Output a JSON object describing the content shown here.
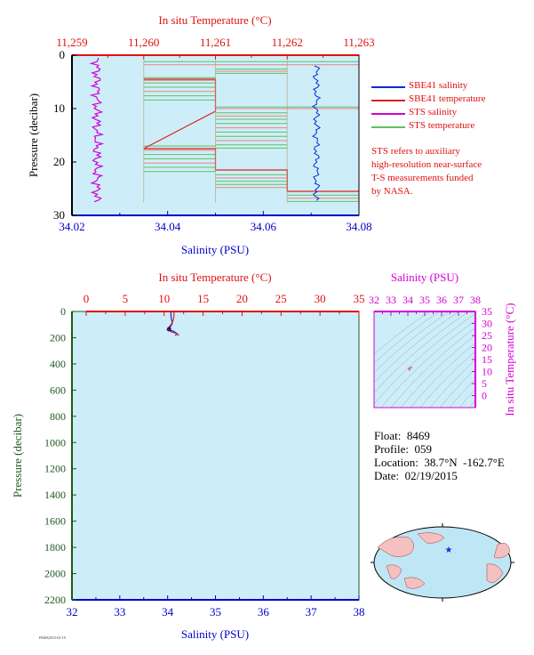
{
  "colors": {
    "plot_bg": "#cdeef8",
    "salinity_axis": "#0000c8",
    "temperature_axis": "#e01010",
    "pressure_axis": "#1c5a1c",
    "sbe_salinity": "#0a2ad8",
    "sbe_temperature": "#e02020",
    "sts_salinity": "#d400d4",
    "sts_temperature": "#60c060",
    "map_land": "#f4c0c0",
    "map_ocean": "#bfe6f4"
  },
  "legend": [
    {
      "label": "SBE41 salinity",
      "color": "#0a2ad8"
    },
    {
      "label": "SBE41 temperature",
      "color": "#e02020"
    },
    {
      "label": "STS salinity",
      "color": "#d400d4"
    },
    {
      "label": "STS temperature",
      "color": "#60c060"
    }
  ],
  "note_lines": [
    "STS refers to auxiliary",
    "high-resolution near-surface",
    "T-S measurements funded",
    "by NASA."
  ],
  "float_info": {
    "float": "Float:  8469",
    "profile": "Profile:  059",
    "location": "Location:  38.7°N  -162.7°E",
    "date": "Date:  02/19/2015"
  },
  "footer_code": "F8469|2015-02-19",
  "chart_data": [
    {
      "type": "line",
      "panel": "near-surface",
      "xlabel": "Salinity (PSU)",
      "x2label": "In situ Temperature (°C)",
      "ylabel": "Pressure (decibar)",
      "xlim": [
        34.02,
        34.08
      ],
      "x2lim": [
        11.259,
        11.263
      ],
      "ylim": [
        30,
        0
      ],
      "x_ticks": [
        "34.02",
        "34.04",
        "34.06",
        "34.08"
      ],
      "x2_ticks": [
        "11,259",
        "11,260",
        "11,261",
        "11,262",
        "11,263"
      ],
      "y_ticks": [
        "0",
        "10",
        "20",
        "30"
      ],
      "grid": false,
      "legend_position": "right",
      "series": [
        {
          "name": "SBE41 salinity",
          "axis": "salinity",
          "points": [
            [
              34.0712,
              3
            ],
            [
              34.0705,
              6
            ],
            [
              34.0715,
              9
            ],
            [
              34.0708,
              12
            ],
            [
              34.0712,
              15
            ],
            [
              34.0706,
              18
            ],
            [
              34.0714,
              21
            ],
            [
              34.0709,
              24
            ],
            [
              34.0711,
              27
            ]
          ]
        },
        {
          "name": "STS salinity",
          "axis": "salinity",
          "points": [
            [
              34.0255,
              0.5
            ],
            [
              34.0248,
              3
            ],
            [
              34.0258,
              6
            ],
            [
              34.025,
              9
            ],
            [
              34.0256,
              12
            ],
            [
              34.0247,
              15
            ],
            [
              34.0257,
              18
            ],
            [
              34.0251,
              21
            ],
            [
              34.0255,
              24
            ],
            [
              34.0249,
              27.5
            ]
          ]
        },
        {
          "name": "SBE41 temperature",
          "axis": "temperature",
          "points": [
            [
              11.26,
              4.5
            ],
            [
              11.261,
              4.5
            ],
            [
              11.261,
              10.5
            ],
            [
              11.26,
              17.5
            ],
            [
              11.261,
              17.5
            ],
            [
              11.261,
              21.5
            ],
            [
              11.262,
              21.5
            ],
            [
              11.262,
              25.5
            ],
            [
              11.263,
              25.5
            ]
          ]
        },
        {
          "name": "STS temperature",
          "axis": "temperature",
          "points": [
            [
              11.26,
              1.8
            ],
            [
              11.263,
              1.2
            ],
            [
              11.261,
              3
            ],
            [
              11.262,
              3.5
            ],
            [
              11.26,
              5
            ],
            [
              11.261,
              5
            ],
            [
              11.261,
              9.8
            ],
            [
              11.263,
              9.8
            ],
            [
              11.26,
              17
            ],
            [
              11.261,
              22
            ],
            [
              11.262,
              22
            ],
            [
              11.262,
              26.5
            ],
            [
              11.263,
              27.2
            ]
          ]
        }
      ]
    },
    {
      "type": "line",
      "panel": "full-profile",
      "xlabel": "Salinity (PSU)",
      "x2label": "In situ Temperature (°C)",
      "ylabel": "Pressure (decibar)",
      "xlim": [
        32,
        38
      ],
      "x2lim": [
        0,
        35
      ],
      "ylim": [
        2200,
        0
      ],
      "x_ticks": [
        "32",
        "33",
        "34",
        "35",
        "36",
        "37",
        "38"
      ],
      "x2_ticks": [
        "0",
        "5",
        "10",
        "15",
        "20",
        "25",
        "30",
        "35"
      ],
      "y_ticks": [
        "0",
        "200",
        "400",
        "600",
        "800",
        "1000",
        "1200",
        "1400",
        "1600",
        "1800",
        "2000",
        "2200"
      ],
      "grid": false,
      "series": [
        {
          "name": "SBE41 salinity",
          "axis": "salinity",
          "points": [
            [
              34.07,
              0
            ],
            [
              34.07,
              30
            ],
            [
              34.08,
              60
            ],
            [
              34.1,
              90
            ],
            [
              34.05,
              120
            ],
            [
              34.0,
              140
            ],
            [
              34.12,
              150
            ],
            [
              34.2,
              170
            ],
            [
              34.16,
              185
            ]
          ]
        },
        {
          "name": "SBE41 temperature",
          "axis": "temperature",
          "points": [
            [
              11.26,
              0
            ],
            [
              11.26,
              30
            ],
            [
              11.2,
              60
            ],
            [
              11.0,
              90
            ],
            [
              10.6,
              120
            ],
            [
              10.4,
              140
            ],
            [
              10.9,
              155
            ],
            [
              11.7,
              170
            ],
            [
              11.9,
              185
            ]
          ]
        }
      ],
      "marker": {
        "salinity": 34.03,
        "pressure": 135
      }
    },
    {
      "type": "scatter",
      "panel": "T-S diagram",
      "xlabel": "Salinity (PSU)",
      "ylabel": "In situ Temperature (°C)",
      "xlim": [
        32,
        38
      ],
      "ylim": [
        -5,
        35
      ],
      "x_ticks": [
        "32",
        "33",
        "34",
        "35",
        "36",
        "37",
        "38"
      ],
      "y_ticks": [
        "0",
        "5",
        "10",
        "15",
        "20",
        "25",
        "30",
        "35"
      ],
      "points": [
        [
          34.07,
          11.26
        ],
        [
          34.1,
          10.8
        ],
        [
          34.2,
          11.7
        ]
      ]
    }
  ],
  "map": {
    "marker_lat": 38.7,
    "marker_lon": -162.7
  }
}
